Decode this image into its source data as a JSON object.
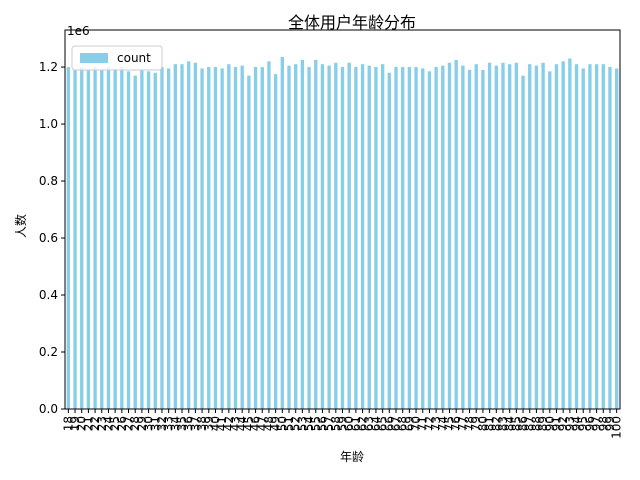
{
  "chart_data": {
    "type": "bar",
    "title": "全体用户年龄分布",
    "xlabel": "年龄",
    "ylabel": "人数",
    "y_offset_label": "1e6",
    "categories": [
      "18",
      "19",
      "20",
      "21",
      "22",
      "23",
      "24",
      "25",
      "26",
      "27",
      "28",
      "29",
      "30",
      "31",
      "32",
      "33",
      "34",
      "35",
      "36",
      "37",
      "38",
      "39",
      "40",
      "41",
      "42",
      "43",
      "44",
      "45",
      "46",
      "47",
      "48",
      "49",
      "50",
      "51",
      "52",
      "53",
      "54",
      "55",
      "56",
      "57",
      "58",
      "59",
      "60",
      "61",
      "62",
      "63",
      "64",
      "65",
      "66",
      "67",
      "68",
      "69",
      "70",
      "71",
      "72",
      "73",
      "74",
      "75",
      "76",
      "77",
      "78",
      "79",
      "80",
      "81",
      "82",
      "83",
      "84",
      "85",
      "86",
      "87",
      "88",
      "89",
      "90",
      "91",
      "92",
      "93",
      "94",
      "95",
      "96",
      "97",
      "98",
      "99",
      "100"
    ],
    "series": [
      {
        "name": "count",
        "color": "#87ceeb",
        "values": [
          1.2,
          1.19,
          1.2,
          1.19,
          1.2,
          1.19,
          1.2,
          1.195,
          1.2,
          1.185,
          1.17,
          1.19,
          1.185,
          1.18,
          1.2,
          1.195,
          1.21,
          1.21,
          1.22,
          1.215,
          1.195,
          1.2,
          1.2,
          1.195,
          1.21,
          1.2,
          1.205,
          1.17,
          1.2,
          1.2,
          1.22,
          1.175,
          1.235,
          1.205,
          1.21,
          1.225,
          1.2,
          1.225,
          1.21,
          1.205,
          1.215,
          1.2,
          1.215,
          1.2,
          1.21,
          1.205,
          1.2,
          1.21,
          1.18,
          1.2,
          1.2,
          1.2,
          1.2,
          1.195,
          1.185,
          1.2,
          1.205,
          1.215,
          1.225,
          1.205,
          1.19,
          1.21,
          1.19,
          1.215,
          1.205,
          1.215,
          1.21,
          1.215,
          1.17,
          1.21,
          1.205,
          1.215,
          1.185,
          1.21,
          1.22,
          1.23,
          1.21,
          1.195,
          1.21,
          1.21,
          1.21,
          1.2,
          1.195
        ]
      }
    ],
    "ylim": [
      0,
      1.33
    ],
    "yticks": [
      {
        "value": 0,
        "label": "0.0"
      },
      0.2,
      0.4,
      0.6,
      0.8,
      {
        "value": 1,
        "label": "1.0"
      },
      1.2
    ],
    "legend": "upper left",
    "grid": false
  }
}
